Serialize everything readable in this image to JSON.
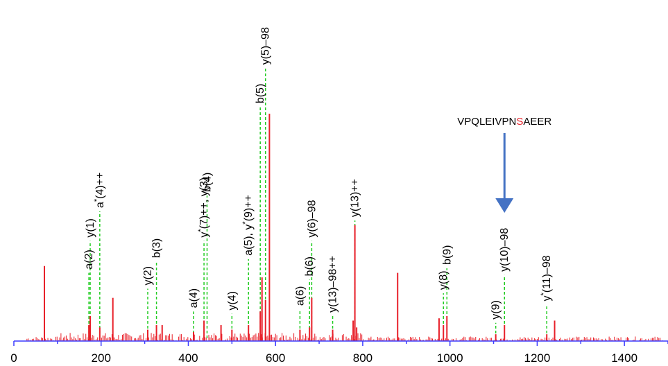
{
  "chart_data": {
    "type": "bar",
    "title": "",
    "xlabel": "",
    "ylabel": "",
    "xlim": [
      0,
      1500
    ],
    "x_ticks": [
      0,
      200,
      400,
      600,
      800,
      1000,
      1200,
      1400
    ],
    "grid": false,
    "peptide": {
      "prefix": "VPQLEIVPN",
      "modified_residue": "S",
      "suffix": "AEER",
      "modified_residue_color": "#e8202a",
      "arrow_m_z": 1125
    },
    "colors": {
      "peaks": "#e8202a",
      "axis": "#3a3aff",
      "annotation_leader": "#22cc22",
      "arrow": "#4472c4"
    },
    "peaks": [
      {
        "mz": 70,
        "intensity": 0.33
      },
      {
        "mz": 172,
        "intensity": 0.07
      },
      {
        "mz": 175,
        "intensity": 0.11
      },
      {
        "mz": 197,
        "intensity": 0.06
      },
      {
        "mz": 227,
        "intensity": 0.19
      },
      {
        "mz": 307,
        "intensity": 0.05
      },
      {
        "mz": 327,
        "intensity": 0.07
      },
      {
        "mz": 340,
        "intensity": 0.07
      },
      {
        "mz": 412,
        "intensity": 0.04
      },
      {
        "mz": 436,
        "intensity": 0.09
      },
      {
        "mz": 475,
        "intensity": 0.07
      },
      {
        "mz": 500,
        "intensity": 0.05
      },
      {
        "mz": 538,
        "intensity": 0.07
      },
      {
        "mz": 565,
        "intensity": 0.13
      },
      {
        "mz": 569,
        "intensity": 0.28
      },
      {
        "mz": 577,
        "intensity": 0.18
      },
      {
        "mz": 586,
        "intensity": 1.0
      },
      {
        "mz": 656,
        "intensity": 0.05
      },
      {
        "mz": 678,
        "intensity": 0.06
      },
      {
        "mz": 683,
        "intensity": 0.19
      },
      {
        "mz": 731,
        "intensity": 0.05
      },
      {
        "mz": 778,
        "intensity": 0.09
      },
      {
        "mz": 782,
        "intensity": 0.51
      },
      {
        "mz": 786,
        "intensity": 0.06
      },
      {
        "mz": 880,
        "intensity": 0.3
      },
      {
        "mz": 975,
        "intensity": 0.1
      },
      {
        "mz": 985,
        "intensity": 0.07
      },
      {
        "mz": 993,
        "intensity": 0.11
      },
      {
        "mz": 1105,
        "intensity": 0.03
      },
      {
        "mz": 1125,
        "intensity": 0.07
      },
      {
        "mz": 1222,
        "intensity": 0.03
      },
      {
        "mz": 1240,
        "intensity": 0.09
      }
    ],
    "annotations": [
      {
        "label": "a(2)",
        "mz": 172,
        "line_top": 0.3
      },
      {
        "label": "y(1)",
        "mz": 175,
        "line_top": 0.44
      },
      {
        "label": "a*(4)++",
        "mz": 197,
        "line_top": 0.57
      },
      {
        "label": "y(2)",
        "mz": 307,
        "line_top": 0.23
      },
      {
        "label": "b(3)",
        "mz": 327,
        "line_top": 0.35
      },
      {
        "label": "a(4)",
        "mz": 412,
        "line_top": 0.13
      },
      {
        "label": "y*(7)++, y(3)",
        "mz": 436,
        "line_top": 0.44
      },
      {
        "label": "b(4)",
        "mz": 443,
        "line_top": 0.64
      },
      {
        "label": "y(4)",
        "mz": 500,
        "line_top": 0.12
      },
      {
        "label": "a(5), y*(9)++",
        "mz": 538,
        "line_top": 0.36
      },
      {
        "label": "b(5)",
        "mz": 565,
        "line_top": 1.03
      },
      {
        "label": "y(5)–98",
        "mz": 577,
        "line_top": 1.2
      },
      {
        "label": "a(6)",
        "mz": 656,
        "line_top": 0.14
      },
      {
        "label": "b(6)",
        "mz": 678,
        "line_top": 0.27
      },
      {
        "label": "y(6)–98",
        "mz": 683,
        "line_top": 0.44
      },
      {
        "label": "y(13)–98++",
        "mz": 731,
        "line_top": 0.11
      },
      {
        "label": "y(13)++",
        "mz": 782,
        "line_top": 0.53
      },
      {
        "label": "y(8)",
        "mz": 985,
        "line_top": 0.21
      },
      {
        "label": "b(9)",
        "mz": 993,
        "line_top": 0.32
      },
      {
        "label": "y(9)",
        "mz": 1105,
        "line_top": 0.08
      },
      {
        "label": "y(10)–98",
        "mz": 1125,
        "line_top": 0.29
      },
      {
        "label": "y*(11)–98",
        "mz": 1222,
        "line_top": 0.16
      }
    ],
    "noise_floor": 0.02
  }
}
